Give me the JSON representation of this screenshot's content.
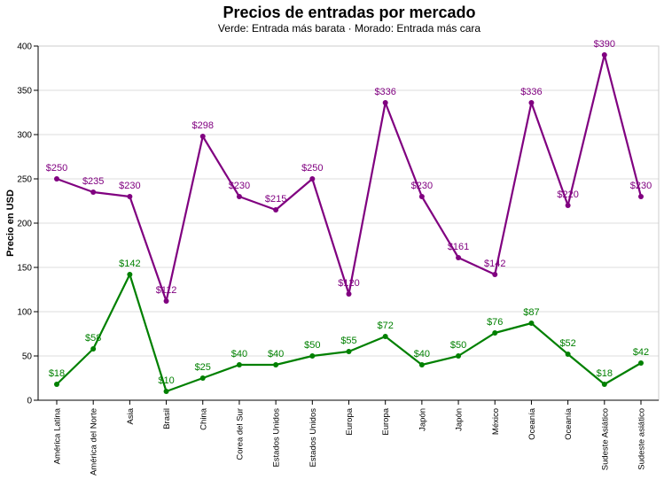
{
  "chart_data": {
    "type": "line",
    "title": "Precios de entradas por mercado",
    "subtitle": "Verde: Entrada más barata · Morado: Entrada más cara",
    "xlabel": "",
    "ylabel": "Precio en USD",
    "ylim": [
      0,
      400
    ],
    "yticks": [
      0,
      50,
      100,
      150,
      200,
      250,
      300,
      350,
      400
    ],
    "grid": true,
    "legend": "none",
    "label_prefix": "$",
    "categories": [
      "América Latina",
      "América del Norte",
      "Asia",
      "Brasil",
      "China",
      "Corea del Sur",
      "Estados Unidos",
      "Estados Unidos",
      "Europa",
      "Europa",
      "Japón",
      "Japón",
      "México",
      "Oceanía",
      "Oceanía",
      "Sudeste Asiático",
      "Sudeste asiático"
    ],
    "series": [
      {
        "color": "#800080",
        "values": [
          250,
          235,
          230,
          112,
          298,
          230,
          215,
          250,
          120,
          336,
          230,
          161,
          142,
          336,
          220,
          390,
          230
        ]
      },
      {
        "color": "#008000",
        "values": [
          18,
          58,
          142,
          10,
          25,
          40,
          40,
          50,
          55,
          72,
          40,
          50,
          76,
          87,
          52,
          18,
          42
        ]
      }
    ]
  }
}
